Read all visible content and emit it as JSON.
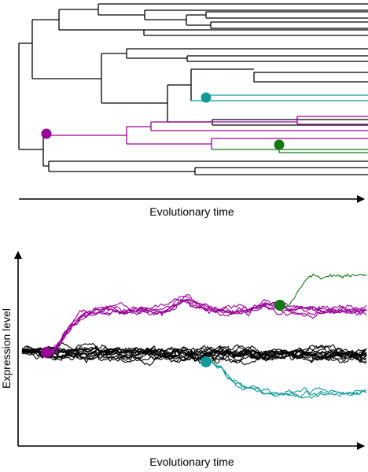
{
  "top_panel": {
    "x_axis_label": "Evolutionary time",
    "tree_color": "#000000",
    "clades": [
      {
        "name": "magenta",
        "color": "#990099"
      },
      {
        "name": "teal",
        "color": "#119999"
      },
      {
        "name": "green",
        "color": "#117711"
      }
    ]
  },
  "bottom_panel": {
    "x_axis_label": "Evolutionary time",
    "y_axis_label": "Expression level",
    "traces": [
      {
        "name": "ancestral",
        "color": "#000000",
        "count": 14
      },
      {
        "name": "magenta",
        "color": "#990099",
        "count": 6
      },
      {
        "name": "teal",
        "color": "#119999",
        "count": 3
      },
      {
        "name": "green",
        "color": "#117711",
        "count": 1
      }
    ]
  }
}
